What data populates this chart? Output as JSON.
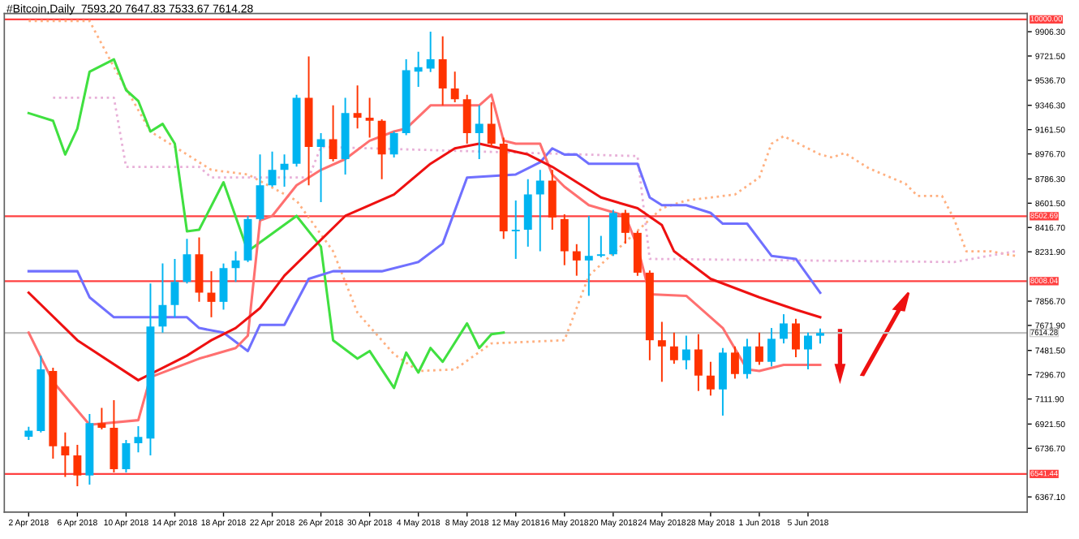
{
  "chart_data": {
    "type": "candlestick",
    "title": "#Bitcoin,Daily  7593.20 7647.83 7533.67 7614.28",
    "x": [
      "2018-04-02",
      "2018-04-03",
      "2018-04-04",
      "2018-04-05",
      "2018-04-06",
      "2018-04-07",
      "2018-04-08",
      "2018-04-09",
      "2018-04-10",
      "2018-04-11",
      "2018-04-12",
      "2018-04-13",
      "2018-04-14",
      "2018-04-15",
      "2018-04-16",
      "2018-04-17",
      "2018-04-18",
      "2018-04-19",
      "2018-04-20",
      "2018-04-21",
      "2018-04-22",
      "2018-04-23",
      "2018-04-24",
      "2018-04-25",
      "2018-04-26",
      "2018-04-27",
      "2018-04-28",
      "2018-04-29",
      "2018-04-30",
      "2018-05-01",
      "2018-05-02",
      "2018-05-03",
      "2018-05-04",
      "2018-05-05",
      "2018-05-06",
      "2018-05-07",
      "2018-05-08",
      "2018-05-09",
      "2018-05-10",
      "2018-05-11",
      "2018-05-12",
      "2018-05-13",
      "2018-05-14",
      "2018-05-15",
      "2018-05-16",
      "2018-05-17",
      "2018-05-18",
      "2018-05-19",
      "2018-05-20",
      "2018-05-21",
      "2018-05-22",
      "2018-05-23",
      "2018-05-24",
      "2018-05-25",
      "2018-05-26",
      "2018-05-27",
      "2018-05-28",
      "2018-05-29",
      "2018-05-30",
      "2018-05-31",
      "2018-06-01",
      "2018-06-02",
      "2018-06-03",
      "2018-06-04",
      "2018-06-05",
      "2018-06-06"
    ],
    "ohlc": [
      [
        6825,
        6900,
        6800,
        6872
      ],
      [
        6869,
        7442,
        6858,
        7337
      ],
      [
        7325,
        7350,
        6659,
        6753
      ],
      [
        6753,
        6858,
        6519,
        6683
      ],
      [
        6683,
        6764,
        6449,
        6530
      ],
      [
        6530,
        6998,
        6461,
        6928
      ],
      [
        6928,
        7045,
        6880,
        6893
      ],
      [
        6893,
        7103,
        6554,
        6578
      ],
      [
        6578,
        6800,
        6554,
        6776
      ],
      [
        6776,
        6905,
        6706,
        6823
      ],
      [
        6811,
        7991,
        6683,
        7664
      ],
      [
        7664,
        8143,
        7617,
        7827
      ],
      [
        7827,
        8178,
        7734,
        8003
      ],
      [
        8003,
        8330,
        7990,
        8213
      ],
      [
        8213,
        8341,
        7851,
        7921
      ],
      [
        7921,
        8084,
        7734,
        7851
      ],
      [
        7851,
        8143,
        7792,
        8108
      ],
      [
        8108,
        8236,
        8003,
        8166
      ],
      [
        8166,
        8505,
        8154,
        8481
      ],
      [
        8481,
        8972,
        8470,
        8738
      ],
      [
        8738,
        8995,
        8727,
        8855
      ],
      [
        8855,
        8972,
        8727,
        8902
      ],
      [
        8902,
        9427,
        8880,
        9404
      ],
      [
        9404,
        9719,
        8738,
        9030
      ],
      [
        9030,
        9135,
        8610,
        9088
      ],
      [
        9088,
        9346,
        8920,
        8937
      ],
      [
        8937,
        9404,
        8820,
        9287
      ],
      [
        9287,
        9497,
        9170,
        9252
      ],
      [
        9252,
        9404,
        9100,
        9229
      ],
      [
        9229,
        9240,
        8785,
        8972
      ],
      [
        8972,
        9147,
        8950,
        9135
      ],
      [
        9135,
        9696,
        9120,
        9614
      ],
      [
        9602,
        9754,
        9486,
        9637
      ],
      [
        9626,
        9906,
        9600,
        9696
      ],
      [
        9696,
        9871,
        9346,
        9474
      ],
      [
        9474,
        9602,
        9370,
        9392
      ],
      [
        9392,
        9427,
        9054,
        9135
      ],
      [
        9135,
        9346,
        8937,
        9205
      ],
      [
        9205,
        9369,
        9030,
        9054
      ],
      [
        9054,
        9100,
        8330,
        8388
      ],
      [
        8388,
        8622,
        8178,
        8400
      ],
      [
        8400,
        8785,
        8271,
        8668
      ],
      [
        8668,
        8855,
        8236,
        8773
      ],
      [
        8773,
        8855,
        8400,
        8493
      ],
      [
        8481,
        8517,
        8130,
        8236
      ],
      [
        8236,
        8290,
        8050,
        8166
      ],
      [
        8166,
        8505,
        7897,
        8201
      ],
      [
        8201,
        8353,
        8190,
        8213
      ],
      [
        8213,
        8551,
        8200,
        8528
      ],
      [
        8528,
        8551,
        8294,
        8376
      ],
      [
        8376,
        8390,
        8049,
        8073
      ],
      [
        8073,
        8090,
        7407,
        7559
      ],
      [
        7559,
        7699,
        7243,
        7512
      ],
      [
        7512,
        7617,
        7380,
        7407
      ],
      [
        7407,
        7594,
        7337,
        7489
      ],
      [
        7489,
        7605,
        7173,
        7290
      ],
      [
        7290,
        7395,
        7138,
        7185
      ],
      [
        7185,
        7500,
        6986,
        7465
      ],
      [
        7465,
        7512,
        7267,
        7302
      ],
      [
        7302,
        7570,
        7267,
        7512
      ],
      [
        7512,
        7617,
        7372,
        7395
      ],
      [
        7395,
        7652,
        7360,
        7570
      ],
      [
        7570,
        7757,
        7535,
        7687
      ],
      [
        7687,
        7722,
        7430,
        7489
      ],
      [
        7489,
        7617,
        7337,
        7594
      ],
      [
        7593.2,
        7647.83,
        7533.67,
        7614.28
      ]
    ],
    "colors": [
      "#00b4f0",
      "#00b4f0",
      "#ff3300",
      "#ff3300",
      "#ff3300",
      "#00b4f0",
      "#ff3300",
      "#ff3300",
      "#00b4f0",
      "#00b4f0",
      "#00b4f0",
      "#00b4f0",
      "#00b4f0",
      "#00b4f0",
      "#ff3300",
      "#ff3300",
      "#00b4f0",
      "#00b4f0",
      "#00b4f0",
      "#00b4f0",
      "#00b4f0",
      "#00b4f0",
      "#00b4f0",
      "#ff3300",
      "#00b4f0",
      "#ff3300",
      "#00b4f0",
      "#ff3300",
      "#ff3300",
      "#ff3300",
      "#00b4f0",
      "#00b4f0",
      "#00b4f0",
      "#00b4f0",
      "#ff3300",
      "#ff3300",
      "#ff3300",
      "#00b4f0",
      "#ff3300",
      "#ff3300",
      "#00b4f0",
      "#00b4f0",
      "#00b4f0",
      "#ff3300",
      "#ff3300",
      "#ff3300",
      "#00b4f0",
      "#00b4f0",
      "#00b4f0",
      "#ff3300",
      "#ff3300",
      "#ff3300",
      "#ff3300",
      "#ff3300",
      "#00b4f0",
      "#ff3300",
      "#ff3300",
      "#00b4f0",
      "#ff3300",
      "#00b4f0",
      "#ff3300",
      "#00b4f0",
      "#00b4f0",
      "#ff3300",
      "#00b4f0",
      "#00b4f0"
    ],
    "series": [
      {
        "type": "line",
        "color": "#ffb080",
        "line_style": "dotted",
        "x": [
          "2018-04-02",
          "2018-04-07",
          "2018-04-09",
          "2018-04-12",
          "2018-04-15",
          "2018-04-17",
          "2018-04-20",
          "2018-04-24",
          "2018-04-27",
          "2018-04-29",
          "2018-05-02",
          "2018-05-04",
          "2018-05-07",
          "2018-05-10",
          "2018-05-16",
          "2018-05-18",
          "2018-05-24",
          "2018-05-26",
          "2018-05-30",
          "2018-06-01",
          "2018-06-02",
          "2018-06-03",
          "2018-06-06",
          "2018-06-07",
          "2018-06-08",
          "2018-06-10",
          "2018-06-13",
          "2018-06-14",
          "2018-06-16",
          "2018-06-17",
          "2018-06-18",
          "2018-06-20",
          "2018-06-22"
        ],
        "values": [
          9988,
          9988,
          9638,
          9147,
          8972,
          8855,
          8820,
          8621,
          8236,
          7769,
          7453,
          7325,
          7337,
          7535,
          7559,
          8050,
          8563,
          8622,
          8668,
          8797,
          9054,
          9112,
          8972,
          8949,
          8984,
          8867,
          8750,
          8657,
          8657,
          8481,
          8236,
          8236,
          8201
        ]
      },
      {
        "type": "line",
        "color": "#e8b0d8",
        "line_style": "dotted",
        "x": [
          "2018-04-04",
          "2018-04-09",
          "2018-04-10",
          "2018-04-16",
          "2018-04-17",
          "2018-04-25",
          "2018-04-26",
          "2018-05-22",
          "2018-05-23",
          "2018-06-17",
          "2018-06-22"
        ],
        "values": [
          9404,
          9404,
          8878,
          8878,
          8797,
          8797,
          9030,
          8960,
          8178,
          8154,
          8236
        ]
      },
      {
        "type": "line",
        "color": "#40e040",
        "line_style": "solid",
        "x": [
          "2018-04-02",
          "2018-04-04",
          "2018-04-05",
          "2018-04-06",
          "2018-04-07",
          "2018-04-09",
          "2018-04-10",
          "2018-04-11",
          "2018-04-12",
          "2018-04-13",
          "2018-04-14",
          "2018-04-15",
          "2018-04-16",
          "2018-04-18",
          "2018-04-20",
          "2018-04-24",
          "2018-04-26",
          "2018-04-27",
          "2018-04-29",
          "2018-04-30",
          "2018-05-02",
          "2018-05-03",
          "2018-05-04",
          "2018-05-05",
          "2018-05-06",
          "2018-05-08",
          "2018-05-09",
          "2018-05-10",
          "2018-05-11"
        ],
        "values": [
          9287,
          9229,
          8972,
          9170,
          9602,
          9696,
          9462,
          9380,
          9147,
          9205,
          9054,
          8388,
          8400,
          8761,
          8236,
          8505,
          8271,
          7559,
          7419,
          7477,
          7196,
          7465,
          7313,
          7500,
          7395,
          7687,
          7500,
          7605,
          7617
        ]
      },
      {
        "type": "line",
        "color": "#7070ff",
        "line_style": "solid",
        "x": [
          "2018-04-02",
          "2018-04-06",
          "2018-04-07",
          "2018-04-09",
          "2018-04-15",
          "2018-04-16",
          "2018-04-18",
          "2018-04-20",
          "2018-04-21",
          "2018-04-23",
          "2018-04-25",
          "2018-04-27",
          "2018-05-01",
          "2018-05-04",
          "2018-05-06",
          "2018-05-08",
          "2018-05-12",
          "2018-05-14",
          "2018-05-15",
          "2018-05-16",
          "2018-05-17",
          "2018-05-18",
          "2018-05-22",
          "2018-05-23",
          "2018-05-24",
          "2018-05-26",
          "2018-05-28",
          "2018-05-29",
          "2018-05-31",
          "2018-06-02",
          "2018-06-04",
          "2018-06-06"
        ],
        "values": [
          8084,
          8084,
          7886,
          7734,
          7734,
          7652,
          7617,
          7477,
          7676,
          7676,
          8026,
          8084,
          8084,
          8154,
          8294,
          8797,
          8820,
          8913,
          9019,
          8972,
          8972,
          8902,
          8902,
          8645,
          8587,
          8587,
          8528,
          8446,
          8446,
          8201,
          8178,
          7921
        ]
      },
      {
        "type": "line",
        "color": "#ff7070",
        "line_style": "solid",
        "x": [
          "2018-04-02",
          "2018-04-04",
          "2018-04-07",
          "2018-04-11",
          "2018-04-12",
          "2018-04-16",
          "2018-04-19",
          "2018-04-20",
          "2018-04-21",
          "2018-04-22",
          "2018-04-24",
          "2018-04-26",
          "2018-04-28",
          "2018-04-30",
          "2018-05-02",
          "2018-05-03",
          "2018-05-05",
          "2018-05-09",
          "2018-05-10",
          "2018-05-11",
          "2018-05-12",
          "2018-05-14",
          "2018-05-15",
          "2018-05-16",
          "2018-05-18",
          "2018-05-21",
          "2018-05-22",
          "2018-05-23",
          "2018-05-26",
          "2018-05-29",
          "2018-05-31",
          "2018-06-01",
          "2018-06-03",
          "2018-06-06"
        ],
        "values": [
          7617,
          7243,
          6916,
          6951,
          7278,
          7419,
          7500,
          7594,
          8470,
          8505,
          8738,
          8855,
          8937,
          9077,
          9147,
          9170,
          9346,
          9346,
          9427,
          9077,
          9054,
          9054,
          8820,
          8727,
          8587,
          8505,
          8271,
          7909,
          7897,
          7652,
          7337,
          7325,
          7372,
          7372
        ]
      },
      {
        "type": "line",
        "color": "#ee1111",
        "line_style": "solid",
        "x": [
          "2018-04-02",
          "2018-04-06",
          "2018-04-11",
          "2018-04-15",
          "2018-04-17",
          "2018-04-19",
          "2018-04-21",
          "2018-04-23",
          "2018-04-28",
          "2018-05-02",
          "2018-05-05",
          "2018-05-07",
          "2018-05-09",
          "2018-05-13",
          "2018-05-15",
          "2018-05-19",
          "2018-05-22",
          "2018-05-24",
          "2018-05-25",
          "2018-05-28",
          "2018-06-01",
          "2018-06-04",
          "2018-06-06"
        ],
        "values": [
          7921,
          7559,
          7255,
          7442,
          7559,
          7652,
          7804,
          8050,
          8505,
          8668,
          8902,
          9019,
          9054,
          8972,
          8878,
          8645,
          8563,
          8435,
          8236,
          8026,
          7886,
          7792,
          7734
        ]
      }
    ],
    "xlim": [
      "2018-03-31",
      "2018-06-23"
    ],
    "xticks": [
      {
        "value": "2018-04-02",
        "label": "2 Apr 2018"
      },
      {
        "value": "2018-04-06",
        "label": "6 Apr 2018"
      },
      {
        "value": "2018-04-10",
        "label": "10 Apr 2018"
      },
      {
        "value": "2018-04-14",
        "label": "14 Apr 2018"
      },
      {
        "value": "2018-04-18",
        "label": "18 Apr 2018"
      },
      {
        "value": "2018-04-22",
        "label": "22 Apr 2018"
      },
      {
        "value": "2018-04-26",
        "label": "26 Apr 2018"
      },
      {
        "value": "2018-04-30",
        "label": "30 Apr 2018"
      },
      {
        "value": "2018-05-04",
        "label": "4 May 2018"
      },
      {
        "value": "2018-05-08",
        "label": "8 May 2018"
      },
      {
        "value": "2018-05-12",
        "label": "12 May 2018"
      },
      {
        "value": "2018-05-16",
        "label": "16 May 2018"
      },
      {
        "value": "2018-05-20",
        "label": "20 May 2018"
      },
      {
        "value": "2018-05-24",
        "label": "24 May 2018"
      },
      {
        "value": "2018-05-28",
        "label": "28 May 2018"
      },
      {
        "value": "2018-06-01",
        "label": "1 Jun 2018"
      },
      {
        "value": "2018-06-05",
        "label": "5 Jun 2018"
      }
    ],
    "ylim": [
      6252,
      10045
    ],
    "yticks": [
      {
        "value": 6367.1,
        "label": "6367.10"
      },
      {
        "value": 6736.7,
        "label": "6736.70"
      },
      {
        "value": 6921.5,
        "label": "6921.50"
      },
      {
        "value": 7111.9,
        "label": "7111.90"
      },
      {
        "value": 7296.7,
        "label": "7296.70"
      },
      {
        "value": 7481.5,
        "label": "7481.50"
      },
      {
        "value": 7671.9,
        "label": "7671.90"
      },
      {
        "value": 7856.7,
        "label": "7856.70"
      },
      {
        "value": 8231.9,
        "label": "8231.90"
      },
      {
        "value": 8416.7,
        "label": "8416.70"
      },
      {
        "value": 8601.5,
        "label": "8601.50"
      },
      {
        "value": 8786.3,
        "label": "8786.30"
      },
      {
        "value": 8976.7,
        "label": "8976.70"
      },
      {
        "value": 9161.5,
        "label": "9161.50"
      },
      {
        "value": 9346.3,
        "label": "9346.30"
      },
      {
        "value": 9536.7,
        "label": "9536.70"
      },
      {
        "value": 9721.5,
        "label": "9721.50"
      },
      {
        "value": 9906.3,
        "label": "9906.30"
      }
    ],
    "ref_lines": [
      {
        "axis": "y",
        "value": 10000,
        "label": "10000.00",
        "color": "#ff4040"
      },
      {
        "axis": "y",
        "value": 8502.69,
        "label": "8502.69",
        "color": "#ff4040"
      },
      {
        "axis": "y",
        "value": 8008.04,
        "label": "8008.04",
        "color": "#ff4040"
      },
      {
        "axis": "y",
        "value": 7614.28,
        "label": "7614.28",
        "color": "#c0c0c0"
      },
      {
        "axis": "y",
        "value": 6541.44,
        "label": "6541.44",
        "color": "#ff4040"
      }
    ],
    "grid": false,
    "legend": false
  }
}
